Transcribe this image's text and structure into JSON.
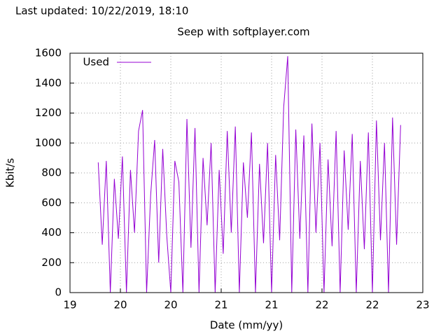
{
  "header": {
    "updated": "Last updated: 10/22/2019, 18:10"
  },
  "chart_data": {
    "type": "line",
    "title": "Seep with softplayer.com",
    "x_label": "Date (mm/yy)",
    "y_label": "Kbit/s",
    "x": [
      19.28,
      19.32,
      19.36,
      19.4,
      19.44,
      19.48,
      19.52,
      19.56,
      19.6,
      19.64,
      19.68,
      19.72,
      19.76,
      19.8,
      19.84,
      19.88,
      19.92,
      19.96,
      20.0,
      20.04,
      20.08,
      20.12,
      20.16,
      20.2,
      20.24,
      20.28,
      20.32,
      20.36,
      20.4,
      20.44,
      20.48,
      20.52,
      20.56,
      20.6,
      20.64,
      20.68,
      20.72,
      20.76,
      20.8,
      20.84,
      20.88,
      20.92,
      20.96,
      21.0,
      21.04,
      21.08,
      21.12,
      21.16,
      21.2,
      21.24,
      21.28,
      21.32,
      21.36,
      21.4,
      21.44,
      21.48,
      21.52,
      21.56,
      21.6,
      21.64,
      21.68,
      21.72,
      21.76,
      21.8,
      21.84,
      21.88,
      21.92,
      21.96,
      22.0,
      22.04,
      22.08,
      22.12,
      22.16,
      22.2,
      22.24,
      22.28
    ],
    "series": [
      {
        "name": "Used",
        "color": "#9400d3",
        "values": [
          870,
          320,
          880,
          0,
          760,
          360,
          910,
          0,
          820,
          400,
          1080,
          1220,
          0,
          650,
          1020,
          200,
          960,
          380,
          0,
          880,
          740,
          0,
          1160,
          300,
          1100,
          0,
          900,
          450,
          1000,
          0,
          820,
          260,
          1080,
          400,
          1110,
          0,
          870,
          500,
          1070,
          0,
          860,
          330,
          1000,
          0,
          920,
          350,
          1240,
          1580,
          0,
          1090,
          360,
          1050,
          0,
          1130,
          400,
          1000,
          0,
          890,
          310,
          1080,
          0,
          950,
          420,
          1060,
          0,
          880,
          290,
          1070,
          0,
          1150,
          350,
          1000,
          0,
          1170,
          320,
          1120
        ]
      }
    ],
    "xlim": [
      19,
      22.5
    ],
    "xticks": [
      {
        "value": 19,
        "label": "19"
      },
      {
        "value": 19.5,
        "label": "20"
      },
      {
        "value": 20,
        "label": "20"
      },
      {
        "value": 20.5,
        "label": "21"
      },
      {
        "value": 21,
        "label": "21"
      },
      {
        "value": 21.5,
        "label": "22"
      },
      {
        "value": 22,
        "label": "22"
      },
      {
        "value": 22.5,
        "label": "23"
      }
    ],
    "ylim": [
      0,
      1600
    ],
    "yticks": [
      0,
      200,
      400,
      600,
      800,
      1000,
      1200,
      1400,
      1600
    ],
    "grid": true,
    "legend": "top left"
  }
}
